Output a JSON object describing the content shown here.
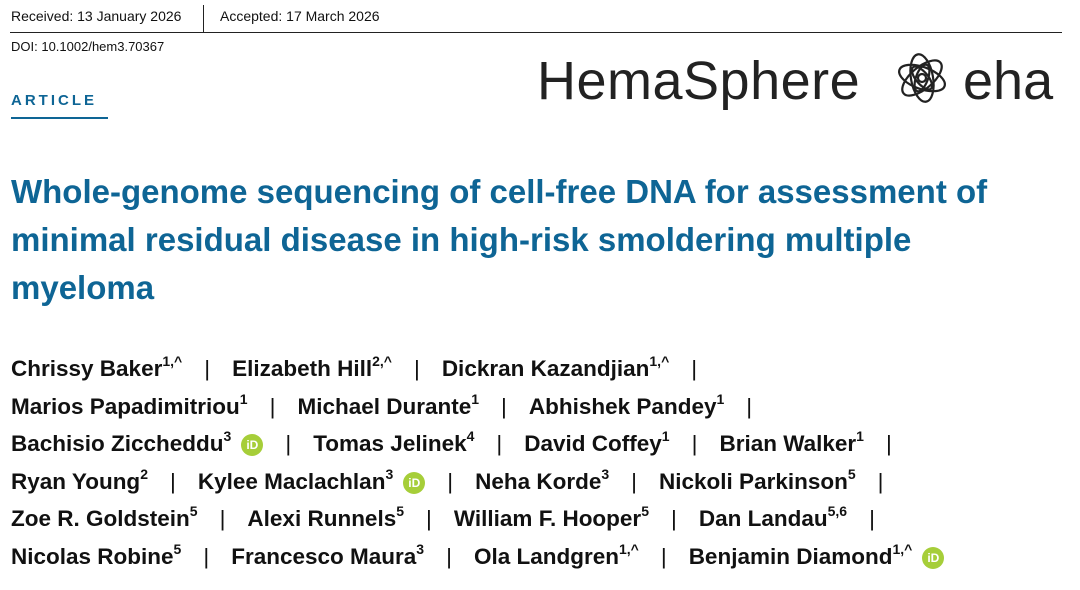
{
  "header": {
    "received": "Received: 13 January 2026",
    "accepted": "Accepted: 17 March 2026",
    "doi": "DOI: 10.1002/hem3.70367"
  },
  "journal": {
    "name": "HemaSphere",
    "society": "eha"
  },
  "section": "ARTICLE",
  "title": "Whole-genome sequencing of cell-free DNA for assessment of minimal residual disease in high-risk smoldering multiple myeloma",
  "authors": {
    "lines": [
      [
        {
          "name": "Chrissy Baker",
          "affiliations": "1,^"
        },
        {
          "name": "Elizabeth Hill",
          "affiliations": "2,^"
        },
        {
          "name": "Dickran Kazandjian",
          "affiliations": "1,^"
        }
      ],
      [
        {
          "name": "Marios Papadimitriou",
          "affiliations": "1"
        },
        {
          "name": "Michael Durante",
          "affiliations": "1"
        },
        {
          "name": "Abhishek Pandey",
          "affiliations": "1"
        }
      ],
      [
        {
          "name": "Bachisio Ziccheddu",
          "affiliations": "3",
          "orcid": "iD"
        },
        {
          "name": "Tomas Jelinek",
          "affiliations": "4"
        },
        {
          "name": "David Coffey",
          "affiliations": "1"
        },
        {
          "name": "Brian Walker",
          "affiliations": "1"
        }
      ],
      [
        {
          "name": "Ryan Young",
          "affiliations": "2"
        },
        {
          "name": "Kylee Maclachlan",
          "affiliations": "3",
          "orcid": "iD"
        },
        {
          "name": "Neha Korde",
          "affiliations": "3"
        },
        {
          "name": "Nickoli Parkinson",
          "affiliations": "5"
        }
      ],
      [
        {
          "name": "Zoe R. Goldstein",
          "affiliations": "5"
        },
        {
          "name": "Alexi Runnels",
          "affiliations": "5"
        },
        {
          "name": "William F. Hooper",
          "affiliations": "5"
        },
        {
          "name": "Dan Landau",
          "affiliations": "5,6"
        }
      ],
      [
        {
          "name": "Nicolas Robine",
          "affiliations": "5"
        },
        {
          "name": "Francesco Maura",
          "affiliations": "3"
        },
        {
          "name": "Ola Landgren",
          "affiliations": "1,^"
        },
        {
          "name": "Benjamin Diamond",
          "affiliations": "1,^",
          "orcid": "iD"
        }
      ]
    ]
  }
}
